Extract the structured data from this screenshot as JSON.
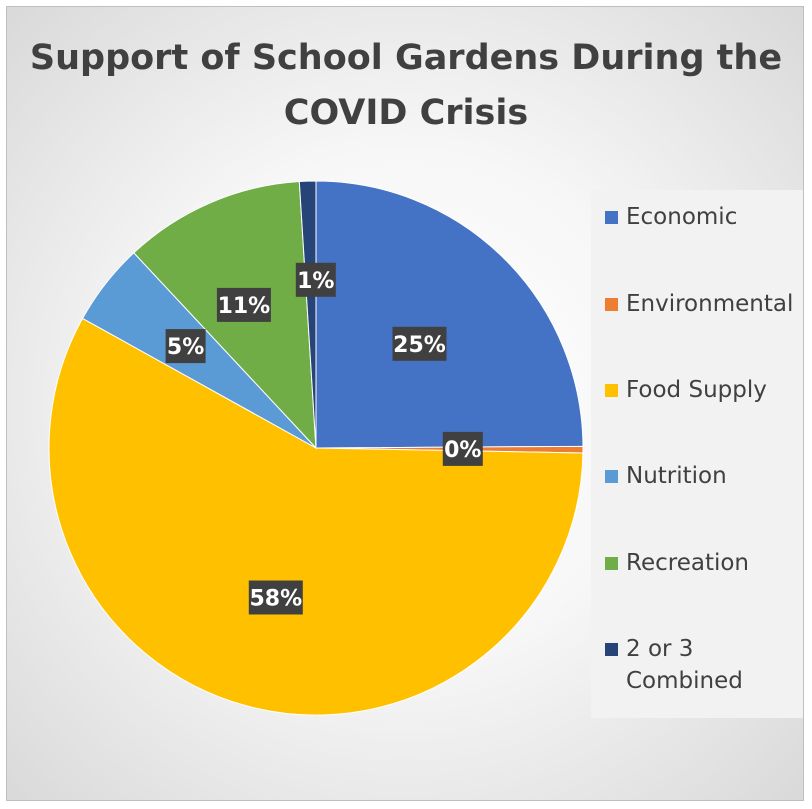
{
  "chart_data": {
    "type": "pie",
    "title": "Support of School Gardens During the COVID Crisis",
    "title_lines": [
      "Support of School Gardens During the",
      "COVID Crisis"
    ],
    "legend_position": "right",
    "slices": [
      {
        "name": "Economic",
        "value": 25,
        "label": "25%",
        "color": "#4472C4"
      },
      {
        "name": "Environmental",
        "value": 0.4,
        "label": "0%",
        "color": "#ED7D31"
      },
      {
        "name": "Food Supply",
        "value": 58,
        "label": "58%",
        "color": "#FFC000"
      },
      {
        "name": "Nutrition",
        "value": 5,
        "label": "5%",
        "color": "#5B9BD5"
      },
      {
        "name": "Recreation",
        "value": 11,
        "label": "11%",
        "color": "#70AD47"
      },
      {
        "name": "2 or 3 Combined",
        "value": 1,
        "label": "1%",
        "color": "#264478"
      }
    ],
    "legend": {
      "entries": [
        {
          "lines": [
            "Economic"
          ]
        },
        {
          "lines": [
            "Environmental"
          ]
        },
        {
          "lines": [
            "Food Supply"
          ]
        },
        {
          "lines": [
            "Nutrition"
          ]
        },
        {
          "lines": [
            "Recreation"
          ]
        },
        {
          "lines": [
            "2 or 3",
            "Combined"
          ]
        }
      ]
    }
  }
}
